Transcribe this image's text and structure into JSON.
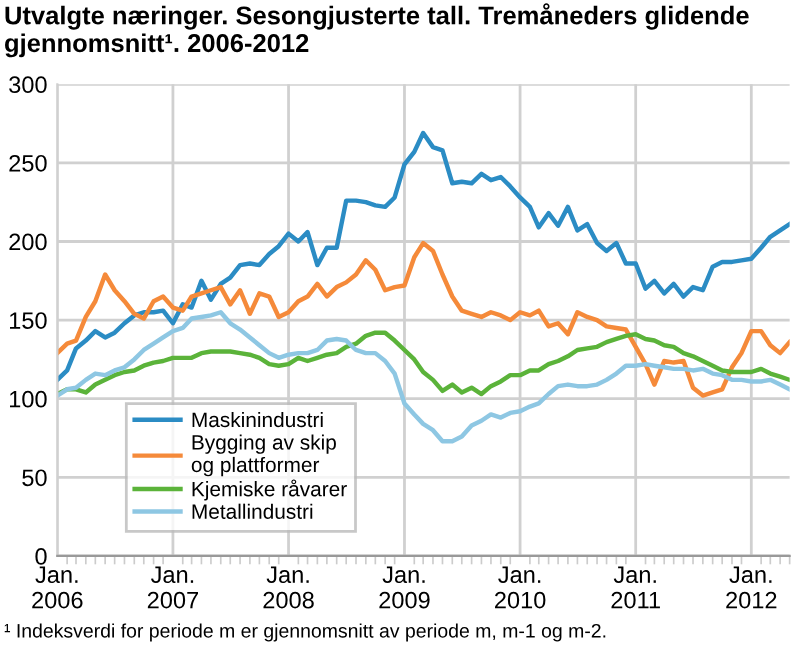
{
  "chart_data": {
    "type": "line",
    "title": "Utvalgte næringer. Sesongjusterte tall. Tremåneders glidende gjennomsnitt¹. 2006-2012",
    "x": [
      "2006-01",
      "2006-02",
      "2006-03",
      "2006-04",
      "2006-05",
      "2006-06",
      "2006-07",
      "2006-08",
      "2006-09",
      "2006-10",
      "2006-11",
      "2006-12",
      "2007-01",
      "2007-02",
      "2007-03",
      "2007-04",
      "2007-05",
      "2007-06",
      "2007-07",
      "2007-08",
      "2007-09",
      "2007-10",
      "2007-11",
      "2007-12",
      "2008-01",
      "2008-02",
      "2008-03",
      "2008-04",
      "2008-05",
      "2008-06",
      "2008-07",
      "2008-08",
      "2008-09",
      "2008-10",
      "2008-11",
      "2008-12",
      "2009-01",
      "2009-02",
      "2009-03",
      "2009-04",
      "2009-05",
      "2009-06",
      "2009-07",
      "2009-08",
      "2009-09",
      "2009-10",
      "2009-11",
      "2009-12",
      "2010-01",
      "2010-02",
      "2010-03",
      "2010-04",
      "2010-05",
      "2010-06",
      "2010-07",
      "2010-08",
      "2010-09",
      "2010-10",
      "2010-11",
      "2010-12",
      "2011-01",
      "2011-02",
      "2011-03",
      "2011-04",
      "2011-05",
      "2011-06",
      "2011-07",
      "2011-08",
      "2011-09",
      "2011-10",
      "2011-11",
      "2011-12",
      "2012-01",
      "2012-02",
      "2012-03",
      "2012-04",
      "2012-05"
    ],
    "series": [
      {
        "name": "Maskinindustri",
        "color": "#2b8cc4",
        "values": [
          112,
          118,
          132,
          137,
          143,
          139,
          142,
          148,
          153,
          155,
          155,
          156,
          148,
          160,
          158,
          175,
          163,
          173,
          177,
          185,
          186,
          185,
          192,
          197,
          205,
          200,
          206,
          185,
          196,
          196,
          226,
          226,
          225,
          223,
          222,
          228,
          249,
          257,
          269,
          260,
          258,
          237,
          238,
          237,
          243,
          239,
          241,
          235,
          228,
          222,
          209,
          218,
          210,
          222,
          207,
          211,
          199,
          194,
          199,
          186,
          186,
          170,
          175,
          167,
          173,
          165,
          171,
          169,
          184,
          187,
          187,
          188,
          189,
          196,
          203,
          207,
          211
        ]
      },
      {
        "name": "Bygging av skip\nog plattformer",
        "color": "#f58a3a",
        "values": [
          129,
          135,
          137,
          152,
          162,
          179,
          169,
          162,
          154,
          151,
          162,
          165,
          158,
          156,
          165,
          167,
          169,
          171,
          160,
          169,
          154,
          167,
          165,
          152,
          155,
          162,
          165,
          173,
          165,
          171,
          174,
          179,
          188,
          182,
          169,
          171,
          172,
          190,
          199,
          194,
          179,
          165,
          156,
          154,
          152,
          155,
          153,
          150,
          155,
          153,
          156,
          146,
          148,
          141,
          155,
          152,
          150,
          146,
          145,
          144,
          133,
          122,
          109,
          124,
          123,
          124,
          107,
          102,
          104,
          106,
          120,
          129,
          143,
          143,
          134,
          129,
          136
        ]
      },
      {
        "name": "Kjemiske råvarer",
        "color": "#5bb33a",
        "values": [
          103,
          106,
          106,
          104,
          109,
          112,
          115,
          117,
          118,
          121,
          123,
          124,
          126,
          126,
          126,
          129,
          130,
          130,
          130,
          129,
          128,
          126,
          122,
          121,
          122,
          126,
          124,
          126,
          128,
          129,
          133,
          135,
          140,
          142,
          142,
          137,
          131,
          125,
          117,
          112,
          105,
          109,
          104,
          107,
          103,
          108,
          111,
          115,
          115,
          118,
          118,
          122,
          124,
          127,
          131,
          132,
          133,
          136,
          138,
          140,
          141,
          138,
          137,
          134,
          133,
          129,
          127,
          124,
          121,
          118,
          117,
          117,
          117,
          119,
          116,
          114,
          112
        ]
      },
      {
        "name": "Metallindustri",
        "color": "#8ec7e3",
        "values": [
          102,
          106,
          107,
          112,
          116,
          115,
          118,
          120,
          125,
          131,
          135,
          139,
          143,
          145,
          151,
          152,
          153,
          155,
          148,
          144,
          139,
          134,
          129,
          126,
          128,
          129,
          129,
          131,
          137,
          138,
          137,
          131,
          129,
          129,
          124,
          116,
          97,
          90,
          84,
          80,
          73,
          73,
          76,
          83,
          86,
          90,
          88,
          91,
          92,
          95,
          97,
          103,
          108,
          109,
          108,
          108,
          109,
          112,
          116,
          121,
          121,
          122,
          121,
          120,
          119,
          119,
          118,
          119,
          116,
          115,
          112,
          112,
          111,
          111,
          112,
          109,
          106
        ]
      }
    ],
    "xlim": [
      "2006-01",
      "2012-05"
    ],
    "xticks": [
      {
        "value": "2006-01",
        "label": "Jan.\n2006"
      },
      {
        "value": "2007-01",
        "label": "Jan.\n2007"
      },
      {
        "value": "2008-01",
        "label": "Jan.\n2008"
      },
      {
        "value": "2009-01",
        "label": "Jan.\n2009"
      },
      {
        "value": "2010-01",
        "label": "Jan.\n2010"
      },
      {
        "value": "2011-01",
        "label": "Jan.\n2011"
      },
      {
        "value": "2012-01",
        "label": "Jan.\n2012"
      }
    ],
    "ylim": [
      0,
      300
    ],
    "yticks": [
      0,
      50,
      100,
      150,
      200,
      250,
      300
    ],
    "grid": true,
    "legend": "bottom left",
    "annotations": [
      "¹ Indeksverdi for periode m er gjennomsnitt av periode m, m-1 og m-2."
    ]
  }
}
